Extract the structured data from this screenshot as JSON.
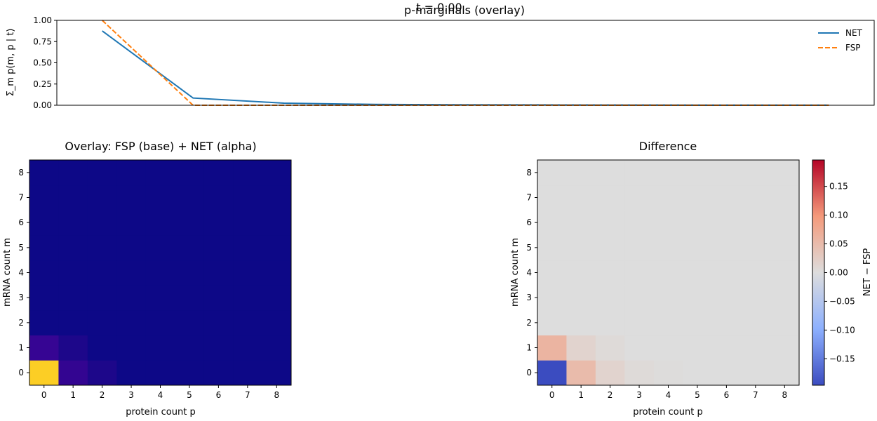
{
  "figure": {
    "suptitle": "t = 0.00"
  },
  "chart_data": [
    {
      "type": "line",
      "title": "p-marginals (overlay)",
      "xlabel": "",
      "ylabel": "Σ_m p(m, p | t)",
      "x": [
        0,
        1,
        2,
        3,
        4,
        5,
        6,
        7,
        8
      ],
      "xlim": [
        -0.5,
        8.5
      ],
      "ylim": [
        0,
        1.0
      ],
      "yticks": [
        0.0,
        0.25,
        0.5,
        0.75,
        1.0
      ],
      "ytick_labels": [
        "0.00",
        "0.25",
        "0.50",
        "0.75",
        "1.00"
      ],
      "legend_position": "top-right",
      "series": [
        {
          "name": "NET",
          "color": "#1f77b4",
          "style": "solid",
          "values": [
            0.875,
            0.085,
            0.025,
            0.01,
            0.005,
            0.003,
            0.002,
            0.001,
            0.001
          ]
        },
        {
          "name": "FSP",
          "color": "#ff7f0e",
          "style": "dashed",
          "values": [
            1.0,
            0.0,
            0.0,
            0.0,
            0.0,
            0.0,
            0.0,
            0.0,
            0.0
          ]
        }
      ]
    },
    {
      "type": "heatmap",
      "title": "Overlay: FSP (base) + NET (alpha)",
      "xlabel": "protein count p",
      "ylabel": "mRNA count m",
      "x": [
        0,
        1,
        2,
        3,
        4,
        5,
        6,
        7,
        8
      ],
      "y": [
        0,
        1,
        2,
        3,
        4,
        5,
        6,
        7,
        8
      ],
      "colormap": "plasma",
      "vmin": 0,
      "vmax": 1,
      "z": [
        [
          1.0,
          0.05,
          0.015,
          0.0,
          0.0,
          0.0,
          0.0,
          0.0,
          0.0
        ],
        [
          0.06,
          0.015,
          0.0,
          0.0,
          0.0,
          0.0,
          0.0,
          0.0,
          0.0
        ],
        [
          0.0,
          0.0,
          0.0,
          0.0,
          0.0,
          0.0,
          0.0,
          0.0,
          0.0
        ],
        [
          0.0,
          0.0,
          0.0,
          0.0,
          0.0,
          0.0,
          0.0,
          0.0,
          0.0
        ],
        [
          0.0,
          0.0,
          0.0,
          0.0,
          0.0,
          0.0,
          0.0,
          0.0,
          0.0
        ],
        [
          0.0,
          0.0,
          0.0,
          0.0,
          0.0,
          0.0,
          0.0,
          0.0,
          0.0
        ],
        [
          0.0,
          0.0,
          0.0,
          0.0,
          0.0,
          0.0,
          0.0,
          0.0,
          0.0
        ],
        [
          0.0,
          0.0,
          0.0,
          0.0,
          0.0,
          0.0,
          0.0,
          0.0,
          0.0
        ],
        [
          0.0,
          0.0,
          0.0,
          0.0,
          0.0,
          0.0,
          0.0,
          0.0,
          0.0
        ]
      ]
    },
    {
      "type": "heatmap",
      "title": "Difference",
      "xlabel": "protein count p",
      "ylabel": "mRNA count m",
      "x": [
        0,
        1,
        2,
        3,
        4,
        5,
        6,
        7,
        8
      ],
      "y": [
        0,
        1,
        2,
        3,
        4,
        5,
        6,
        7,
        8
      ],
      "colormap": "coolwarm",
      "vmin": -0.196,
      "vmax": 0.196,
      "colorbar_label": "NET − FSP",
      "colorbar_ticks": [
        -0.15,
        -0.1,
        -0.05,
        0.0,
        0.05,
        0.1,
        0.15
      ],
      "colorbar_tick_labels": [
        "−0.15",
        "−0.10",
        "−0.05",
        "0.00",
        "0.05",
        "0.10",
        "0.15"
      ],
      "z": [
        [
          -0.196,
          0.05,
          0.015,
          0.005,
          0.002,
          0.0,
          0.0,
          0.0,
          0.0
        ],
        [
          0.06,
          0.015,
          0.005,
          0.0,
          0.0,
          0.0,
          0.0,
          0.0,
          0.0
        ],
        [
          0.0,
          0.0,
          0.0,
          0.0,
          0.0,
          0.0,
          0.0,
          0.0,
          0.0
        ],
        [
          0.0,
          0.0,
          0.0,
          0.0,
          0.0,
          0.0,
          0.0,
          0.0,
          0.0
        ],
        [
          0.0,
          0.0,
          0.0,
          0.0,
          0.0,
          0.0,
          0.0,
          0.0,
          0.0
        ],
        [
          0.0,
          0.0,
          0.0,
          0.0,
          0.0,
          0.0,
          0.0,
          0.0,
          0.0
        ],
        [
          0.0,
          0.0,
          0.0,
          0.0,
          0.0,
          0.0,
          0.0,
          0.0,
          0.0
        ],
        [
          0.0,
          0.0,
          0.0,
          0.0,
          0.0,
          0.0,
          0.0,
          0.0,
          0.0
        ],
        [
          0.0,
          0.0,
          0.0,
          0.0,
          0.0,
          0.0,
          0.0,
          0.0,
          0.0
        ]
      ]
    }
  ]
}
